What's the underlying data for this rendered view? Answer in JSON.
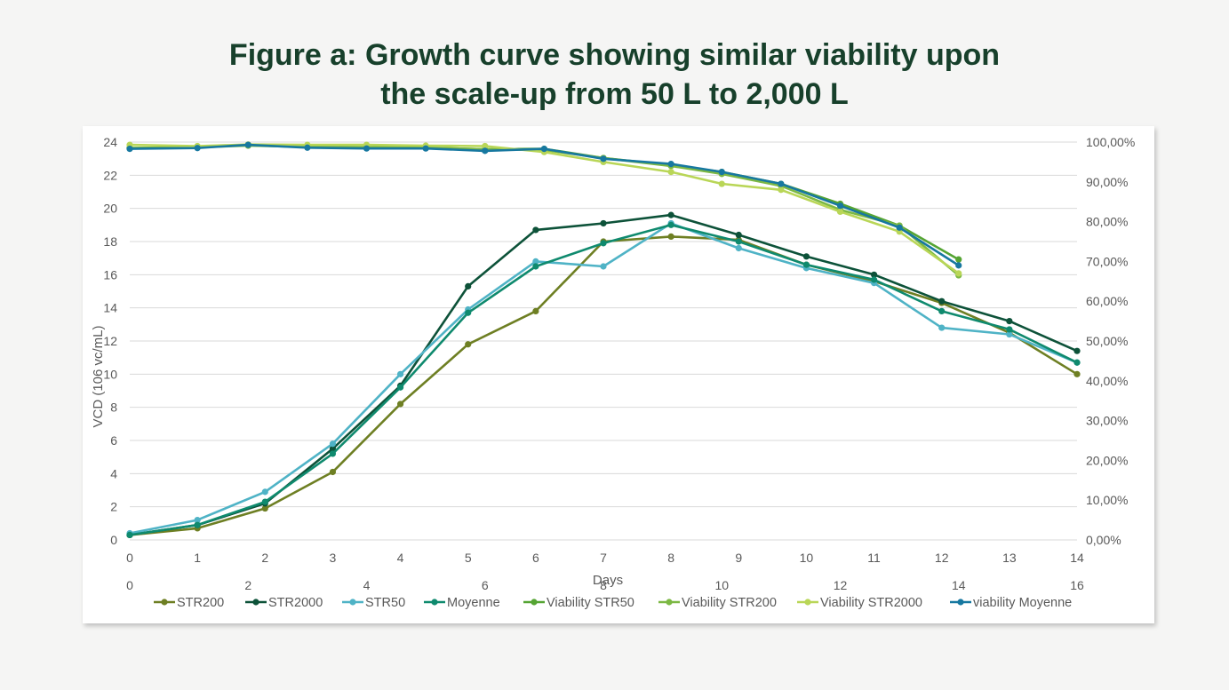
{
  "title": {
    "line1": "Figure a: Growth curve showing similar viability upon",
    "line2": "the scale-up from 50 L to 2,000 L"
  },
  "chart_data": {
    "type": "line",
    "xlabel": "Days",
    "ylabel": "VCD (106 vc/mL)",
    "x_primary": {
      "range": [
        0,
        14
      ],
      "ticks": [
        "0",
        "1",
        "2",
        "3",
        "4",
        "5",
        "6",
        "7",
        "8",
        "9",
        "10",
        "11",
        "12",
        "13",
        "14"
      ]
    },
    "x_secondary": {
      "range": [
        0,
        16
      ],
      "ticks": [
        "0",
        "2",
        "4",
        "6",
        "8",
        "10",
        "12",
        "14",
        "16"
      ]
    },
    "y_left": {
      "range": [
        0,
        24
      ],
      "ticks": [
        "0",
        "2",
        "4",
        "6",
        "8",
        "10",
        "12",
        "14",
        "16",
        "18",
        "20",
        "22",
        "24"
      ]
    },
    "y_right": {
      "range": [
        0,
        100
      ],
      "ticks": [
        "0,00%",
        "10,00%",
        "20,00%",
        "30,00%",
        "40,00%",
        "50,00%",
        "60,00%",
        "70,00%",
        "80,00%",
        "90,00%",
        "100,00%"
      ]
    },
    "grid": "horizontal",
    "legend_position": "bottom",
    "series": [
      {
        "name": "STR200",
        "axis": "left",
        "color": "#6e7f23",
        "x": [
          0,
          1,
          2,
          3,
          4,
          5,
          6,
          7,
          8,
          9,
          10,
          11,
          12,
          13,
          14
        ],
        "values": [
          0.3,
          0.7,
          1.9,
          4.1,
          8.2,
          11.8,
          13.8,
          18.0,
          18.3,
          18.1,
          16.6,
          15.6,
          14.3,
          12.5,
          10.0
        ]
      },
      {
        "name": "STR2000",
        "axis": "left",
        "color": "#0d5239",
        "x": [
          0,
          1,
          2,
          3,
          4,
          5,
          6,
          7,
          8,
          9,
          10,
          11,
          12,
          13,
          14
        ],
        "values": [
          0.3,
          0.9,
          2.2,
          5.5,
          9.3,
          15.3,
          18.7,
          19.1,
          19.6,
          18.4,
          17.1,
          16.0,
          14.4,
          13.2,
          11.4
        ]
      },
      {
        "name": "STR50",
        "axis": "left",
        "color": "#4fb3c6",
        "x": [
          0,
          1,
          2,
          3,
          4,
          5,
          6,
          7,
          8,
          9,
          10,
          11,
          12,
          13,
          14
        ],
        "values": [
          0.4,
          1.2,
          2.9,
          5.8,
          10.0,
          13.9,
          16.8,
          16.5,
          19.1,
          17.6,
          16.4,
          15.5,
          12.8,
          12.4,
          10.7
        ]
      },
      {
        "name": "Moyenne",
        "axis": "left",
        "color": "#0f8a6e",
        "x": [
          0,
          1,
          2,
          3,
          4,
          5,
          6,
          7,
          8,
          9,
          10,
          11,
          12,
          13,
          14
        ],
        "values": [
          0.3,
          0.9,
          2.3,
          5.2,
          9.2,
          13.7,
          16.5,
          17.9,
          19.0,
          18.0,
          16.6,
          15.7,
          13.8,
          12.7,
          10.7
        ]
      },
      {
        "name": "Viability STR50",
        "axis": "right",
        "color": "#55a433",
        "x": [
          0,
          1,
          1.75,
          2.625,
          3.5,
          4.375,
          5.25,
          6.125,
          7,
          8,
          8.75,
          9.625,
          10.5,
          11.375,
          12.25
        ],
        "values": [
          98.5,
          98.8,
          99.2,
          98.8,
          98.7,
          98.6,
          98.2,
          98.3,
          96.0,
          94.2,
          92.5,
          89.5,
          84.5,
          79.0,
          70.5
        ]
      },
      {
        "name": "Viability STR200",
        "axis": "right",
        "color": "#7cb844",
        "x": [
          0,
          1,
          1.75,
          2.625,
          3.5,
          4.375,
          5.25,
          6.125,
          7,
          8,
          8.75,
          9.625,
          10.5,
          11.375,
          12.25
        ],
        "values": [
          98.5,
          98.7,
          99.1,
          98.8,
          98.7,
          98.6,
          98.2,
          98.0,
          96.0,
          94.0,
          92.0,
          89.0,
          83.0,
          79.0,
          66.5
        ]
      },
      {
        "name": "Viability STR2000",
        "axis": "right",
        "color": "#b9d657",
        "x": [
          0,
          1,
          1.75,
          2.625,
          3.5,
          4.375,
          5.25,
          6.125,
          7,
          8,
          8.75,
          9.625,
          10.5,
          11.375,
          12.25
        ],
        "values": [
          99.3,
          99.0,
          99.4,
          99.3,
          99.3,
          99.1,
          99.0,
          97.5,
          95.0,
          92.5,
          89.5,
          88.0,
          82.5,
          77.5,
          67.0
        ]
      },
      {
        "name": "viability Moyenne",
        "axis": "right",
        "color": "#1778a0",
        "x": [
          0,
          1,
          1.75,
          2.625,
          3.5,
          4.375,
          5.25,
          6.125,
          7,
          8,
          8.75,
          9.625,
          10.5,
          11.375,
          12.25
        ],
        "values": [
          98.3,
          98.5,
          99.3,
          98.6,
          98.4,
          98.4,
          97.8,
          98.3,
          95.8,
          94.5,
          92.5,
          89.5,
          84.0,
          78.5,
          69.0
        ]
      }
    ]
  }
}
